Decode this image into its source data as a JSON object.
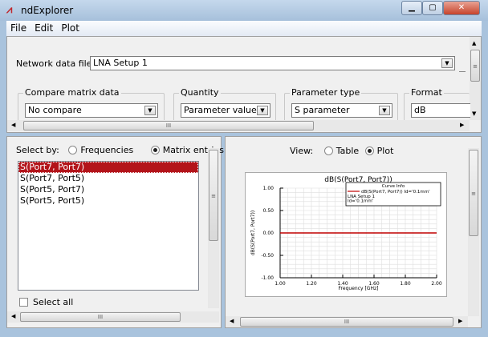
{
  "window": {
    "title": "ndExplorer",
    "app_icon": "ndexplorer-logo-icon"
  },
  "menu": [
    "File",
    "Edit",
    "Plot"
  ],
  "network": {
    "label": "Network data file:",
    "value": "LNA Setup 1"
  },
  "groups": {
    "compare": {
      "label": "Compare matrix data",
      "value": "No compare"
    },
    "quantity": {
      "label": "Quantity",
      "value": "Parameter values"
    },
    "param_type": {
      "label": "Parameter type",
      "value": "S parameter"
    },
    "format": {
      "label": "Format",
      "value": "dB"
    }
  },
  "select_by": {
    "label": "Select by:",
    "options": [
      "Frequencies",
      "Matrix entries"
    ],
    "selected": "Matrix entries"
  },
  "entries": [
    "S(Port7, Port7)",
    "S(Port7, Port5)",
    "S(Port5, Port7)",
    "S(Port5, Port5)"
  ],
  "selected_entry": "S(Port7, Port7)",
  "select_all": "Select all",
  "view": {
    "label": "View:",
    "options": [
      "Table",
      "Plot"
    ],
    "selected": "Plot"
  },
  "scroll_grip": "III",
  "chart_data": {
    "type": "line",
    "title": "dB(S(Port7, Port7))",
    "xlabel": "Frequency [GHz]",
    "ylabel": "dB(S(Port7, Port7))",
    "xlim": [
      1.0,
      2.0
    ],
    "ylim": [
      -1.0,
      1.0
    ],
    "xticks": [
      "1.00",
      "1.20",
      "1.40",
      "1.60",
      "1.80",
      "2.00"
    ],
    "yticks": [
      "1.00",
      "0.50",
      "0.00",
      "-0.50",
      "-1.00"
    ],
    "grid": true,
    "series": [
      {
        "name": "dB(S(Port7, Port7)) Id='0.1mm'",
        "x": [
          1.0,
          2.0
        ],
        "y": [
          0.0,
          0.0
        ],
        "color": "#c00000"
      }
    ],
    "legend": {
      "title": "Curve Info",
      "entry": "dB(S(Port7, Port7)) Id='0.1mm'",
      "lines": [
        "LNA Setup 1",
        "Id='0.1mm'"
      ],
      "position": "top-right"
    }
  }
}
